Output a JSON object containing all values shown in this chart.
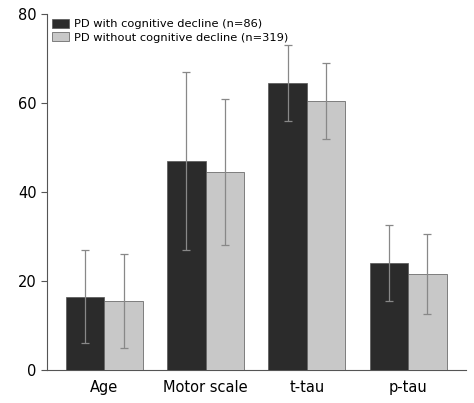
{
  "categories": [
    "Age",
    "Motor scale",
    "t-tau",
    "p-tau"
  ],
  "dark_values": [
    16.5,
    47.0,
    64.5,
    24.0
  ],
  "light_values": [
    15.5,
    44.5,
    60.5,
    21.5
  ],
  "dark_errors": [
    10.5,
    20.0,
    8.5,
    8.5
  ],
  "light_errors": [
    10.5,
    16.5,
    8.5,
    9.0
  ],
  "dark_color": "#2b2b2b",
  "light_color": "#c8c8c8",
  "error_color": "#888888",
  "legend_dark": "PD with cognitive decline (n=86)",
  "legend_light": "PD without cognitive decline (n=319)",
  "ylim": [
    0,
    80
  ],
  "yticks": [
    0,
    20,
    40,
    60,
    80
  ],
  "bar_width": 0.38,
  "figsize": [
    4.74,
    4.03
  ],
  "dpi": 100,
  "background_color": "#ffffff",
  "edge_color": "#555555",
  "capsize": 3,
  "error_linewidth": 0.9
}
